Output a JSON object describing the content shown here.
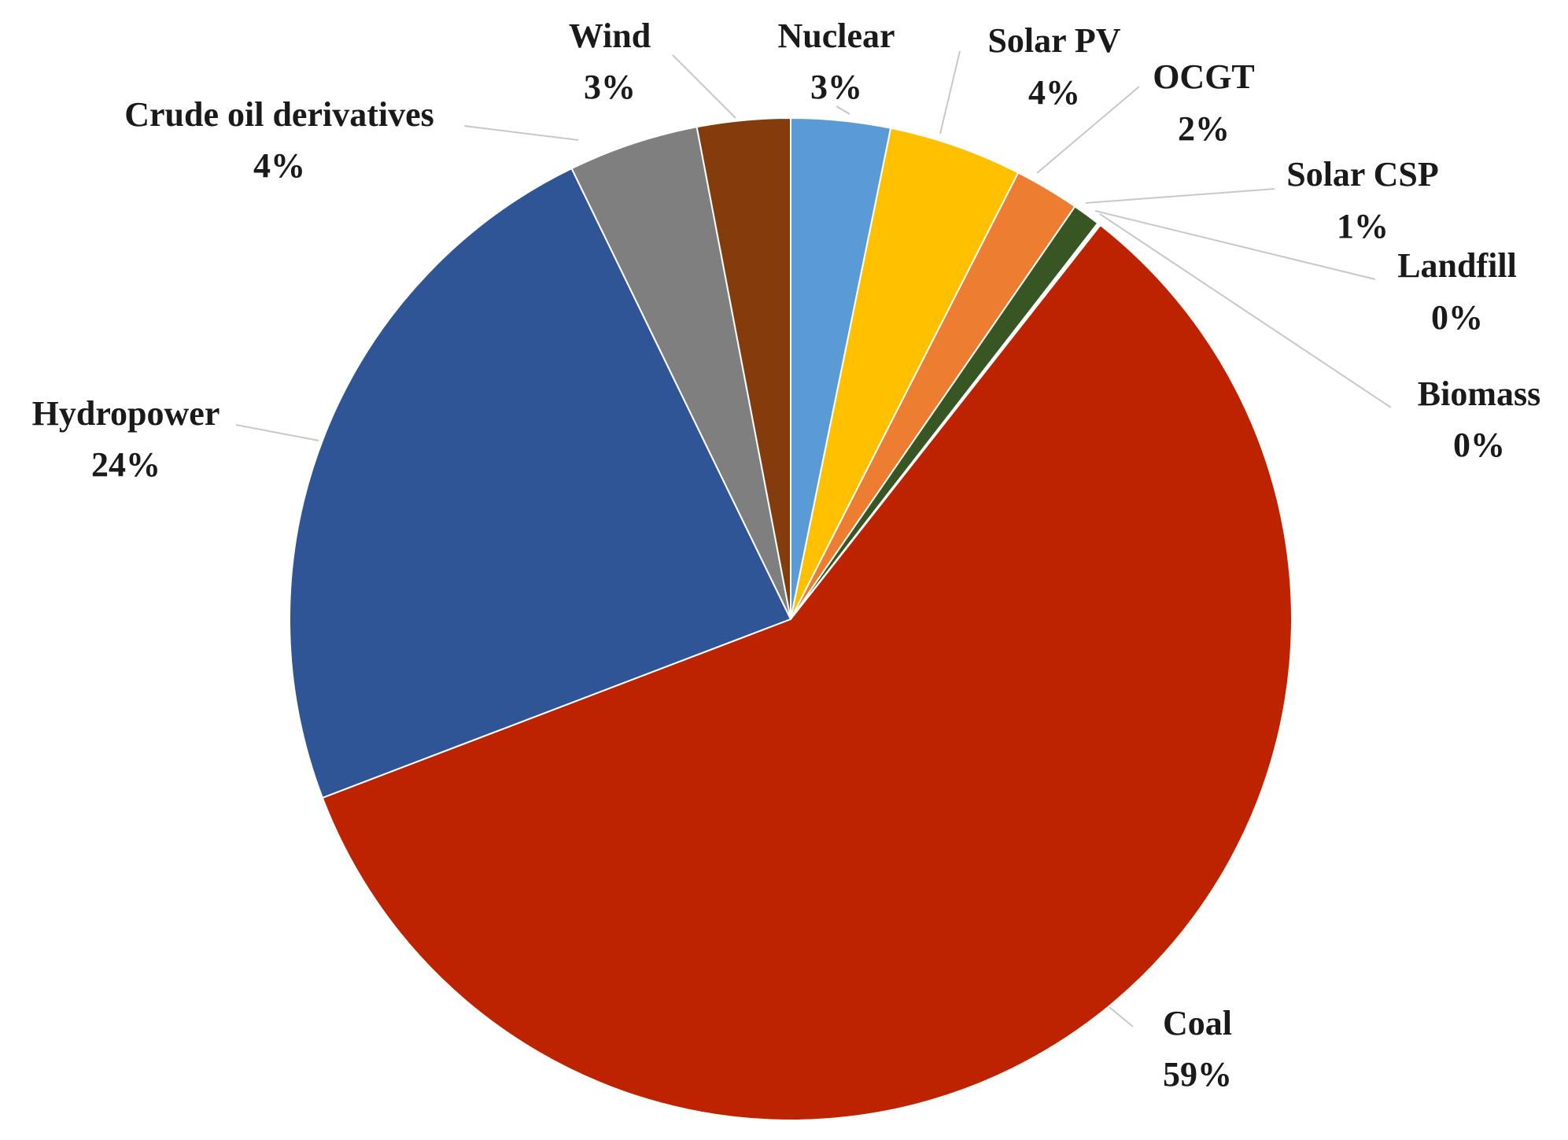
{
  "chart_data": {
    "type": "pie",
    "title": "",
    "start_angle_deg": 0,
    "direction": "clockwise",
    "slices": [
      {
        "label": "Nuclear",
        "pct_label": "3%",
        "value": 3.2,
        "color": "#5B9BD5"
      },
      {
        "label": "Solar PV",
        "pct_label": "4%",
        "value": 4.3,
        "color": "#FFC000"
      },
      {
        "label": "OCGT",
        "pct_label": "2%",
        "value": 2.1,
        "color": "#ED7D31"
      },
      {
        "label": "Solar CSP",
        "pct_label": "1%",
        "value": 0.9,
        "color": "#375623"
      },
      {
        "label": "Landfill",
        "pct_label": "0%",
        "value": 0.05,
        "color": "#A5A5A5"
      },
      {
        "label": "Biomass",
        "pct_label": "0%",
        "value": 0.05,
        "color": "#70AD47"
      },
      {
        "label": "Coal",
        "pct_label": "59%",
        "value": 58.6,
        "color": "#BE2300"
      },
      {
        "label": "Hydropower",
        "pct_label": "24%",
        "value": 23.6,
        "color": "#2F5597"
      },
      {
        "label": "Crude oil derivatives",
        "pct_label": "4%",
        "value": 4.2,
        "color": "#7F7F7F"
      },
      {
        "label": "Wind",
        "pct_label": "3%",
        "value": 3.0,
        "color": "#843C0C"
      }
    ]
  }
}
